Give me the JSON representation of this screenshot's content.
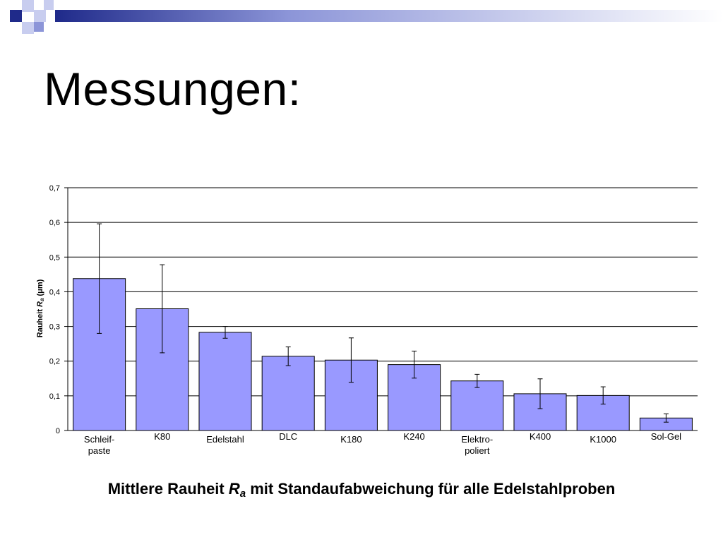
{
  "slide": {
    "title": "Messungen:",
    "caption_before": "Mittlere Rauheit ",
    "caption_symbol": "R",
    "caption_subscript": "a",
    "caption_after": " mit Standaufabweichung für alle Edelstahlproben"
  },
  "colors": {
    "bar_fill": "#9999ff",
    "bar_stroke": "#000000",
    "deco_dark": "#1f2a8a",
    "deco_mid": "#8c95d8",
    "deco_light": "#c8cdef"
  },
  "chart_data": {
    "type": "bar",
    "ylabel_parts": [
      "Rauheit ",
      "R",
      "a",
      " (",
      "μ",
      "m)"
    ],
    "ylim": [
      0,
      0.7
    ],
    "yticks": [
      {
        "value": 0,
        "label": "0"
      },
      {
        "value": 0.1,
        "label": "0,1"
      },
      {
        "value": 0.2,
        "label": "0,2"
      },
      {
        "value": 0.3,
        "label": "0,3"
      },
      {
        "value": 0.4,
        "label": "0,4"
      },
      {
        "value": 0.5,
        "label": "0,5"
      },
      {
        "value": 0.6,
        "label": "0,6"
      },
      {
        "value": 0.7,
        "label": "0,7"
      }
    ],
    "grid": true,
    "categories": [
      [
        "Schleif-",
        "paste"
      ],
      [
        "K80"
      ],
      [
        "Edelstahl"
      ],
      [
        "DLC"
      ],
      [
        "K180"
      ],
      [
        "K240"
      ],
      [
        "Elektro-",
        "poliert"
      ],
      [
        "K400"
      ],
      [
        "K1000"
      ],
      [
        "Sol-Gel"
      ]
    ],
    "values": [
      0.438,
      0.351,
      0.283,
      0.214,
      0.203,
      0.19,
      0.143,
      0.106,
      0.101,
      0.036
    ],
    "errors": [
      0.158,
      0.127,
      0.017,
      0.027,
      0.064,
      0.039,
      0.019,
      0.043,
      0.025,
      0.012
    ]
  }
}
